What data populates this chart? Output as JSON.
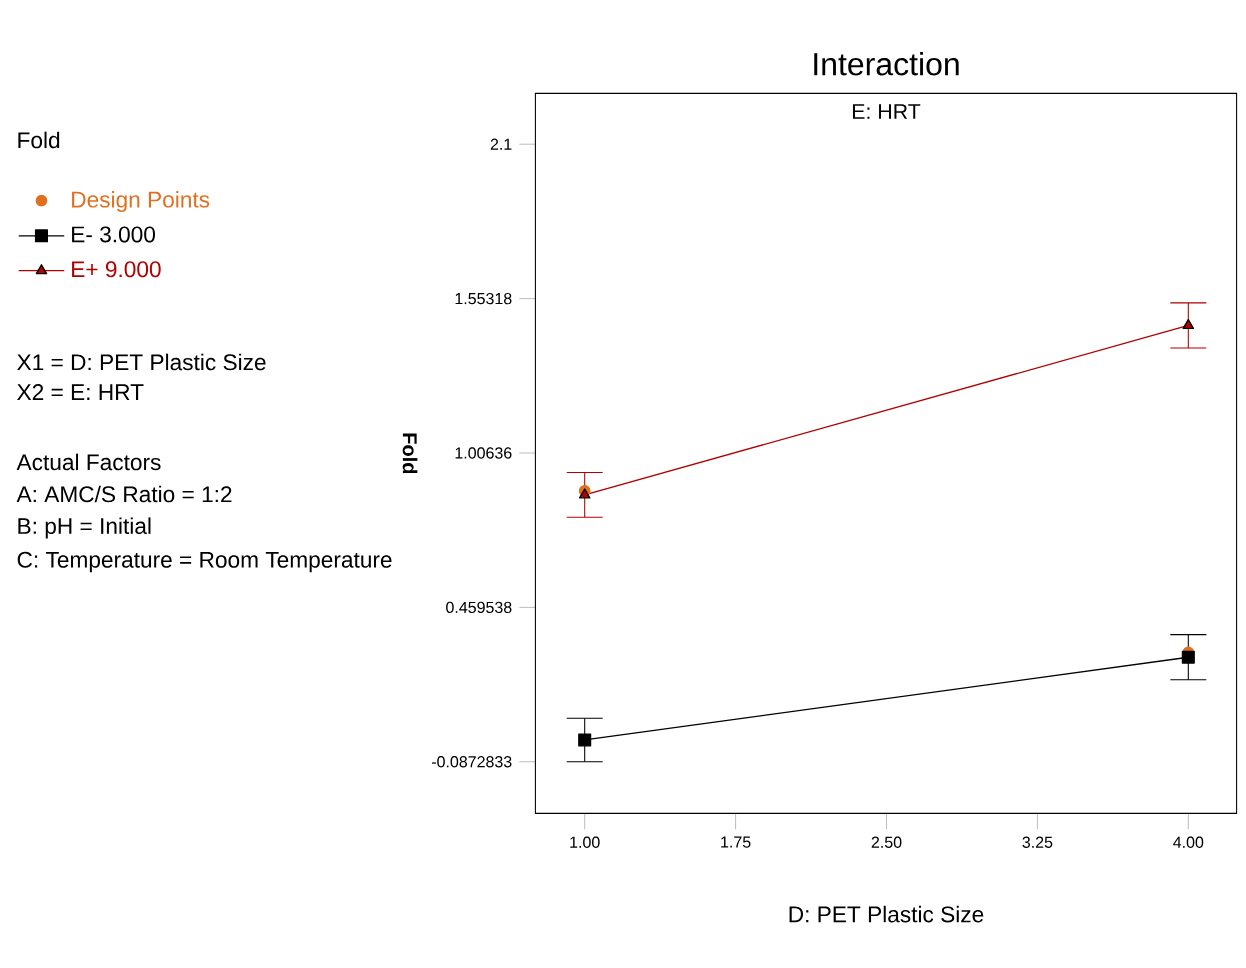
{
  "chart_data": {
    "type": "line",
    "title": "Interaction",
    "subtitle": "E: HRT",
    "xlabel": "D: PET Plastic Size",
    "ylabel": "Fold",
    "x": [
      1,
      4
    ],
    "series": [
      {
        "name": "Design Points",
        "type": "scatter",
        "marker": "circle",
        "color": "#e07020",
        "x": [
          1,
          4
        ],
        "values": [
          0.872,
          0.3
        ]
      },
      {
        "name": "E- 3.000",
        "color": "#000000",
        "marker": "square",
        "values": [
          -0.01,
          0.283
        ],
        "errors": [
          0.077,
          0.08
        ]
      },
      {
        "name": "E+ 9.000",
        "color": "#b00000",
        "marker": "triangle",
        "values": [
          0.858,
          1.458
        ],
        "errors": [
          0.079,
          0.08
        ]
      }
    ],
    "xlim": [
      0.755,
      4.24
    ],
    "ylim": [
      -0.27,
      2.28
    ],
    "xticks": [
      {
        "value": 1,
        "label": "1.00"
      },
      {
        "value": 1.75,
        "label": "1.75"
      },
      {
        "value": 2.5,
        "label": "2.50"
      },
      {
        "value": 3.25,
        "label": "3.25"
      },
      {
        "value": 4,
        "label": "4.00"
      }
    ],
    "yticks": [
      -0.0872833,
      0.459538,
      1.00636,
      1.55318,
      2.1
    ],
    "legend": "left",
    "grid": false,
    "annotations": [
      "Fold",
      "X1 = D: PET Plastic Size",
      "X2 = E: HRT",
      "Actual Factors",
      "A: AMC/S Ratio = 1:2",
      "B: pH = Initial",
      "C: Temperature = Room Temperature"
    ]
  }
}
